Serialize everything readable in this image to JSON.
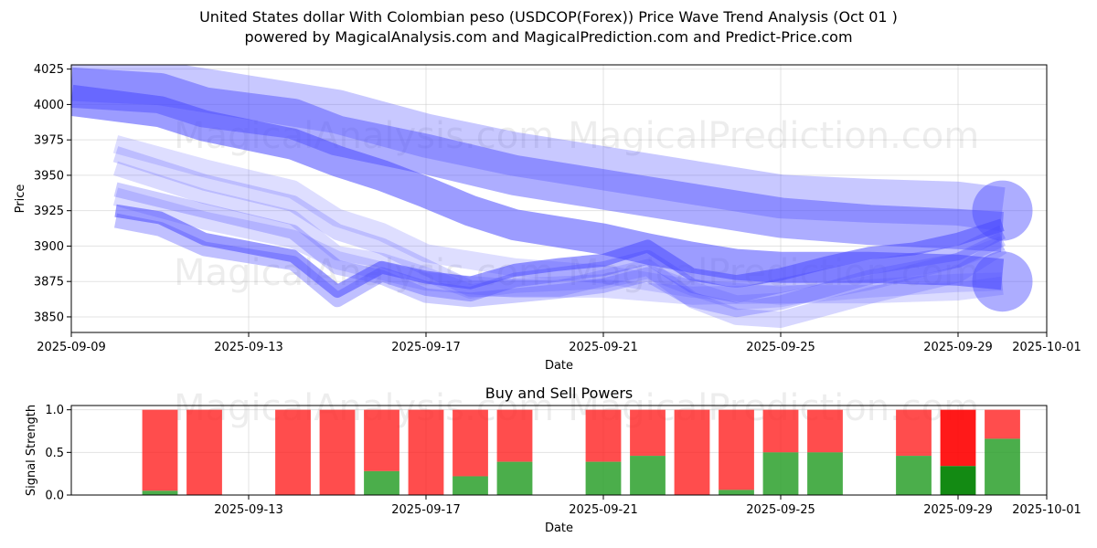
{
  "title": "United States dollar With Colombian peso (USDCOP(Forex)) Price Wave Trend Analysis (Oct 01 )",
  "subtitle": "powered by MagicalAnalysis.com and MagicalPrediction.com and Predict-Price.com",
  "watermarks": [
    "MagicalAnalysis.com",
    "MagicalPrediction.com"
  ],
  "colors": {
    "wave": "#4a4aff",
    "buy": "#2ca02c",
    "sell": "#ff2020",
    "buy_highlight": "#138a13",
    "sell_highlight": "#ff0000"
  },
  "chart_data": [
    {
      "type": "area",
      "title": "",
      "xlabel": "Date",
      "ylabel": "Price",
      "xlim": [
        "2025-09-09",
        "2025-10-01"
      ],
      "ylim": [
        3839,
        4028
      ],
      "x_ticks": [
        "2025-09-09",
        "2025-09-13",
        "2025-09-17",
        "2025-09-21",
        "2025-09-25",
        "2025-09-29",
        "2025-10-01"
      ],
      "y_ticks": [
        3850,
        3875,
        3900,
        3925,
        3950,
        3975,
        4000,
        4025
      ],
      "grid": true,
      "series": [
        {
          "x": [
            "2025-09-09",
            "2025-09-11",
            "2025-09-12",
            "2025-09-14",
            "2025-09-15",
            "2025-09-16",
            "2025-09-17",
            "2025-09-18",
            "2025-09-19",
            "2025-09-21",
            "2025-09-22",
            "2025-09-23",
            "2025-09-24",
            "2025-09-25",
            "2025-09-27",
            "2025-09-29",
            "2025-09-30"
          ],
          "y": [
            4003,
            3995,
            3985,
            3972,
            3960,
            3950,
            3938,
            3925,
            3915,
            3905,
            3898,
            3892,
            3887,
            3885,
            3885,
            3883,
            3880
          ],
          "width": 34,
          "opacity": 0.55
        },
        {
          "x": [
            "2025-09-09",
            "2025-09-11",
            "2025-09-12",
            "2025-09-14",
            "2025-09-15",
            "2025-09-17",
            "2025-09-19",
            "2025-09-21",
            "2025-09-22",
            "2025-09-24",
            "2025-09-25",
            "2025-09-27",
            "2025-09-29",
            "2025-09-30"
          ],
          "y": [
            4012,
            4008,
            3998,
            3990,
            3978,
            3965,
            3950,
            3940,
            3935,
            3925,
            3920,
            3915,
            3912,
            3910
          ],
          "width": 44,
          "opacity": 0.45
        },
        {
          "x": [
            "2025-09-09",
            "2025-09-11",
            "2025-09-13",
            "2025-09-15",
            "2025-09-17",
            "2025-09-19",
            "2025-09-21",
            "2025-09-23",
            "2025-09-25",
            "2025-09-27",
            "2025-09-29",
            "2025-09-30"
          ],
          "y": [
            4018,
            4015,
            4005,
            3995,
            3978,
            3965,
            3955,
            3945,
            3935,
            3932,
            3930,
            3926
          ],
          "width": 48,
          "opacity": 0.3
        },
        {
          "x": [
            "2025-09-10",
            "2025-09-11",
            "2025-09-12",
            "2025-09-14",
            "2025-09-15",
            "2025-09-16",
            "2025-09-17",
            "2025-09-18",
            "2025-09-19",
            "2025-09-20",
            "2025-09-21",
            "2025-09-22",
            "2025-09-23",
            "2025-09-24",
            "2025-09-25",
            "2025-09-26",
            "2025-09-27",
            "2025-09-28",
            "2025-09-29",
            "2025-09-30"
          ],
          "y": [
            3925,
            3920,
            3905,
            3893,
            3868,
            3885,
            3878,
            3874,
            3883,
            3887,
            3890,
            3900,
            3880,
            3875,
            3880,
            3888,
            3895,
            3898,
            3905,
            3915
          ],
          "width": 14,
          "opacity": 0.55
        },
        {
          "x": [
            "2025-09-10",
            "2025-09-11",
            "2025-09-12",
            "2025-09-14",
            "2025-09-15",
            "2025-09-16",
            "2025-09-17",
            "2025-09-18",
            "2025-09-19",
            "2025-09-21",
            "2025-09-22",
            "2025-09-23",
            "2025-09-24",
            "2025-09-25",
            "2025-09-27",
            "2025-09-29",
            "2025-09-30"
          ],
          "y": [
            3918,
            3912,
            3898,
            3888,
            3862,
            3880,
            3870,
            3866,
            3876,
            3884,
            3892,
            3872,
            3865,
            3872,
            3885,
            3895,
            3910
          ],
          "width": 16,
          "opacity": 0.35
        },
        {
          "x": [
            "2025-09-10",
            "2025-09-12",
            "2025-09-14",
            "2025-09-15",
            "2025-09-16",
            "2025-09-17",
            "2025-09-18",
            "2025-09-20",
            "2025-09-21",
            "2025-09-22",
            "2025-09-23",
            "2025-09-24",
            "2025-09-25",
            "2025-09-27",
            "2025-09-29",
            "2025-09-30"
          ],
          "y": [
            3940,
            3925,
            3910,
            3885,
            3878,
            3865,
            3862,
            3868,
            3872,
            3880,
            3862,
            3855,
            3860,
            3878,
            3890,
            3905
          ],
          "width": 16,
          "opacity": 0.28
        },
        {
          "x": [
            "2025-09-10",
            "2025-09-12",
            "2025-09-14",
            "2025-09-15",
            "2025-09-16",
            "2025-09-17",
            "2025-09-18",
            "2025-09-20",
            "2025-09-22",
            "2025-09-23",
            "2025-09-24",
            "2025-09-25",
            "2025-09-27",
            "2025-09-29",
            "2025-09-30"
          ],
          "y": [
            3965,
            3945,
            3930,
            3910,
            3900,
            3885,
            3870,
            3870,
            3885,
            3862,
            3850,
            3848,
            3865,
            3880,
            3900
          ],
          "width": 18,
          "opacity": 0.22
        },
        {
          "x": [
            "2025-09-10",
            "2025-09-12",
            "2025-09-14",
            "2025-09-15",
            "2025-09-16",
            "2025-09-17",
            "2025-09-18",
            "2025-09-19",
            "2025-09-21",
            "2025-09-22",
            "2025-09-23",
            "2025-09-24",
            "2025-09-25",
            "2025-09-27",
            "2025-09-29",
            "2025-09-30"
          ],
          "y": [
            3955,
            3935,
            3920,
            3895,
            3890,
            3880,
            3868,
            3872,
            3875,
            3882,
            3870,
            3860,
            3862,
            3874,
            3890,
            3902
          ],
          "width": 16,
          "opacity": 0.2
        },
        {
          "x": [
            "2025-09-10",
            "2025-09-12",
            "2025-09-14",
            "2025-09-15",
            "2025-09-16",
            "2025-09-17",
            "2025-09-19",
            "2025-09-21",
            "2025-09-23",
            "2025-09-25",
            "2025-09-27",
            "2025-09-29",
            "2025-09-30"
          ],
          "y": [
            3972,
            3955,
            3940,
            3920,
            3910,
            3895,
            3885,
            3880,
            3870,
            3865,
            3870,
            3874,
            3875
          ],
          "width": 20,
          "opacity": 0.18
        },
        {
          "x": [
            "2025-09-10",
            "2025-09-12",
            "2025-09-14",
            "2025-09-15",
            "2025-09-17",
            "2025-09-19",
            "2025-09-21",
            "2025-09-23",
            "2025-09-25",
            "2025-09-27",
            "2025-09-29",
            "2025-09-30"
          ],
          "y": [
            3935,
            3918,
            3905,
            3890,
            3875,
            3870,
            3870,
            3865,
            3866,
            3866,
            3868,
            3872
          ],
          "width": 20,
          "opacity": 0.2
        }
      ],
      "end_markers": [
        {
          "x": "2025-09-30",
          "y": 3925
        },
        {
          "x": "2025-09-30",
          "y": 3875
        }
      ]
    },
    {
      "type": "bar",
      "title": "Buy and Sell Powers",
      "xlabel": "Date",
      "ylabel": "Signal Strength",
      "xlim": [
        "2025-09-09",
        "2025-10-01"
      ],
      "ylim": [
        0,
        1.05
      ],
      "x_ticks": [
        "2025-09-13",
        "2025-09-17",
        "2025-09-21",
        "2025-09-25",
        "2025-09-29",
        "2025-10-01"
      ],
      "y_ticks": [
        "0.0",
        "0.5",
        "1.0"
      ],
      "grid": true,
      "categories": [
        "2025-09-11",
        "2025-09-12",
        "2025-09-14",
        "2025-09-15",
        "2025-09-16",
        "2025-09-17",
        "2025-09-18",
        "2025-09-19",
        "2025-09-21",
        "2025-09-22",
        "2025-09-23",
        "2025-09-24",
        "2025-09-25",
        "2025-09-26",
        "2025-09-28",
        "2025-09-29",
        "2025-09-30"
      ],
      "series": [
        {
          "name": "buy",
          "values": [
            0.05,
            0,
            0,
            0,
            0.28,
            0,
            0.22,
            0.39,
            0.39,
            0.46,
            0,
            0.06,
            0.5,
            0.5,
            0.46,
            0.34,
            0.66
          ]
        },
        {
          "name": "sell",
          "values": [
            0.95,
            1,
            1,
            1,
            0.72,
            1,
            0.78,
            0.61,
            0.61,
            0.54,
            1,
            0.94,
            0.5,
            0.5,
            0.54,
            0.66,
            0.34
          ]
        }
      ],
      "highlight": "2025-09-29"
    }
  ]
}
